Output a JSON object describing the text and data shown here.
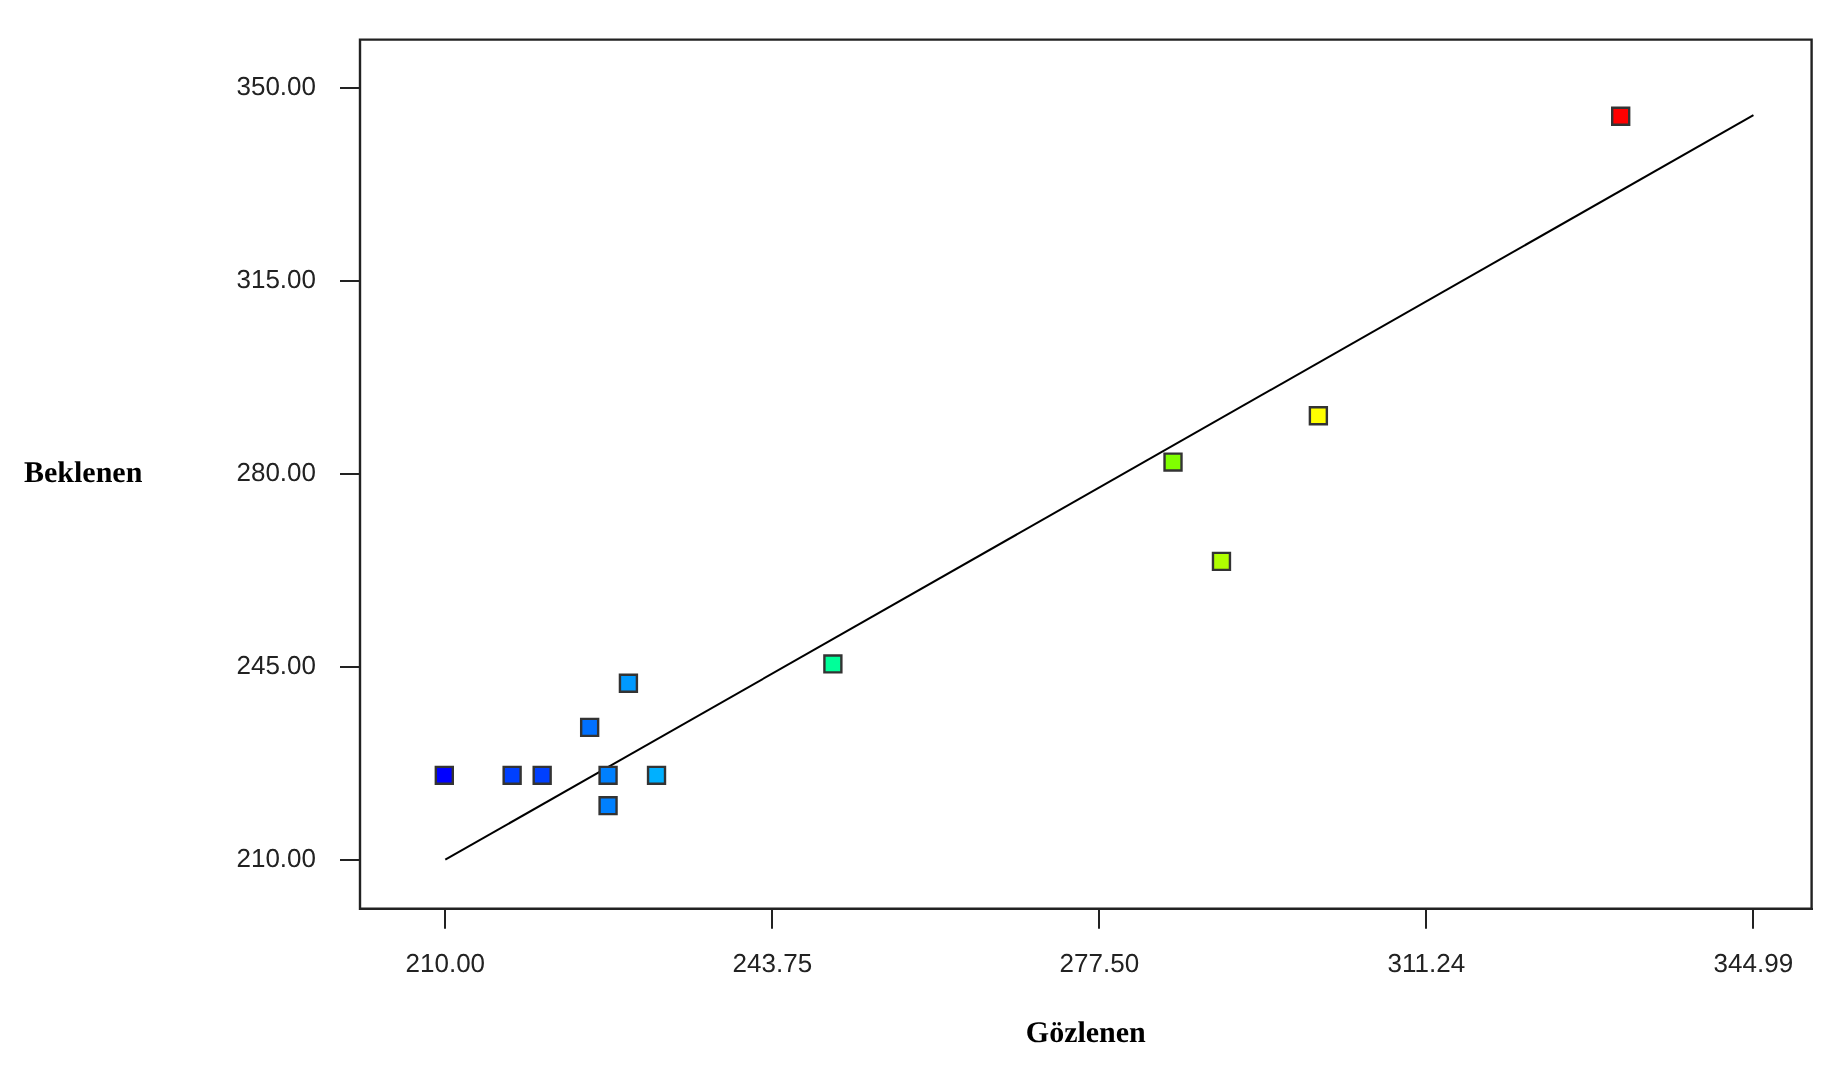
{
  "chart_data": {
    "type": "scatter",
    "xlabel": "Gözlenen",
    "ylabel": "Beklenen",
    "marker": "square",
    "grid": false,
    "legend": false,
    "xlim": [
      201.2,
      351
    ],
    "ylim": [
      201.1,
      358.7
    ],
    "xticks": [
      {
        "value": 210,
        "label": "210.00"
      },
      {
        "value": 243.75,
        "label": "243.75"
      },
      {
        "value": 277.5,
        "label": "277.50"
      },
      {
        "value": 311.24,
        "label": "311.24"
      },
      {
        "value": 344.99,
        "label": "344.99"
      }
    ],
    "yticks": [
      {
        "value": 210,
        "label": "210.00"
      },
      {
        "value": 245,
        "label": "245.00"
      },
      {
        "value": 280,
        "label": "280.00"
      },
      {
        "value": 315,
        "label": "315.00"
      },
      {
        "value": 350,
        "label": "350.00"
      }
    ],
    "series": [
      {
        "type": "scatter",
        "x": [
          209.9,
          216.9,
          220.0,
          224.9,
          228.9,
          226.8,
          226.8,
          231.8,
          250.0,
          285.1,
          290.1,
          300.1,
          331.3
        ],
        "values": [
          225.3,
          225.3,
          225.3,
          234.0,
          242.0,
          225.3,
          219.8,
          225.3,
          245.5,
          282.1,
          264.1,
          290.5,
          344.8
        ],
        "colors": [
          "#0000ff",
          "#0040ff",
          "#0040ff",
          "#0070ff",
          "#0099ff",
          "#0080ff",
          "#0080ff",
          "#00b0ff",
          "#00ff99",
          "#80ff00",
          "#b0ff00",
          "#ffff00",
          "#ff0000"
        ]
      },
      {
        "type": "line",
        "x": [
          210,
          345
        ],
        "values": [
          210,
          345
        ],
        "color": "#000000",
        "marker": "none"
      }
    ]
  }
}
